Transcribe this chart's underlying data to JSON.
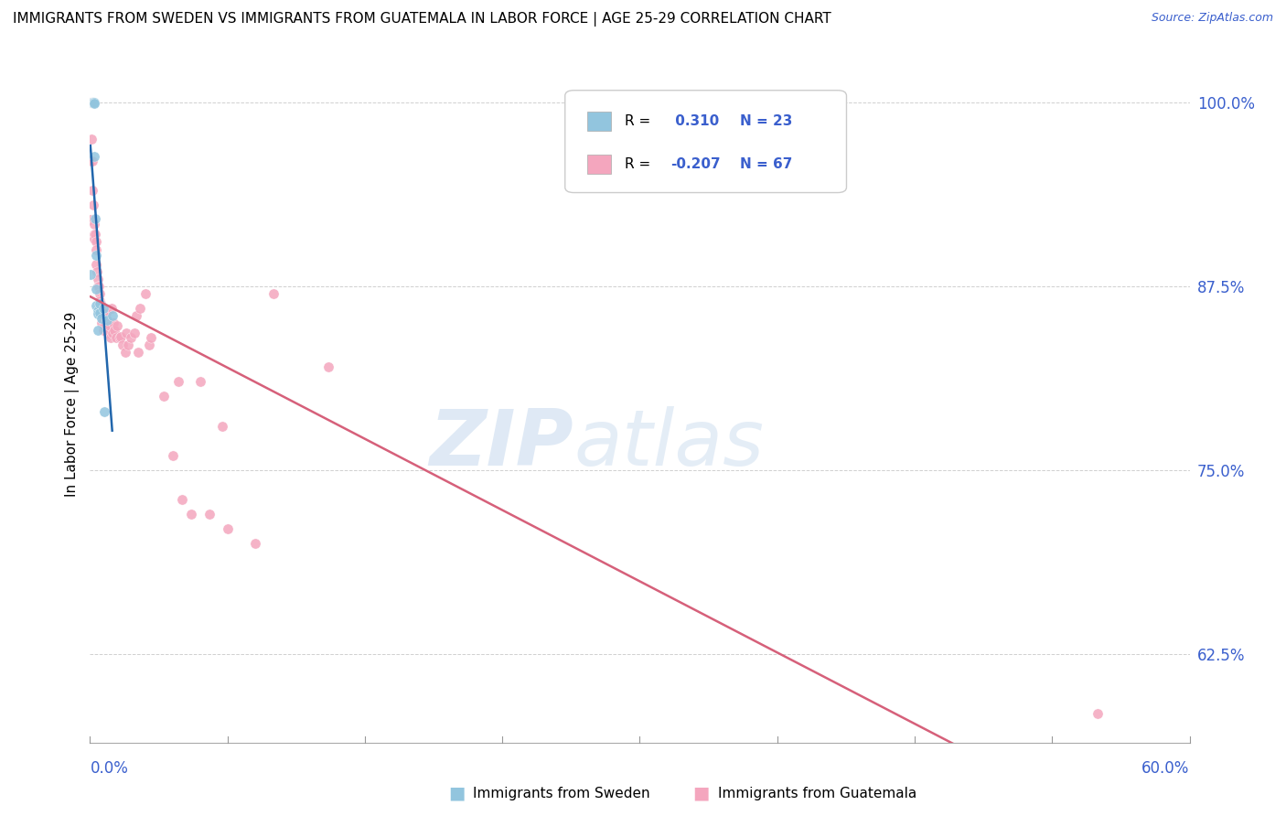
{
  "title": "IMMIGRANTS FROM SWEDEN VS IMMIGRANTS FROM GUATEMALA IN LABOR FORCE | AGE 25-29 CORRELATION CHART",
  "source": "Source: ZipAtlas.com",
  "ylabel": "In Labor Force | Age 25-29",
  "R_sweden": 0.31,
  "N_sweden": 23,
  "R_guatemala": -0.207,
  "N_guatemala": 67,
  "legend_label_sweden": "Immigrants from Sweden",
  "legend_label_guatemala": "Immigrants from Guatemala",
  "color_sweden": "#92c5de",
  "color_guatemala": "#f4a6be",
  "trendline_color_sweden": "#2166ac",
  "trendline_color_guatemala": "#d6607a",
  "xlim": [
    0.0,
    0.6
  ],
  "ylim": [
    0.565,
    1.025
  ],
  "ytick_positions": [
    0.625,
    0.75,
    0.875,
    1.0
  ],
  "ytick_labels": [
    "62.5%",
    "75.0%",
    "87.5%",
    "100.0%"
  ],
  "sweden_x": [
    0.0002,
    0.0011,
    0.0013,
    0.0014,
    0.0016,
    0.002,
    0.0021,
    0.0022,
    0.0023,
    0.003,
    0.0031,
    0.0032,
    0.0033,
    0.0041,
    0.0042,
    0.0044,
    0.0051,
    0.0053,
    0.0061,
    0.0072,
    0.008,
    0.0095,
    0.0121
  ],
  "sweden_y": [
    0.883,
    1.0,
    1.0,
    1.0,
    1.0,
    1.0,
    1.0,
    0.999,
    0.963,
    0.921,
    0.896,
    0.873,
    0.862,
    0.858,
    0.856,
    0.845,
    0.863,
    0.857,
    0.853,
    0.86,
    0.79,
    0.852,
    0.855
  ],
  "guatemala_x": [
    0.0003,
    0.0004,
    0.0005,
    0.001,
    0.0012,
    0.0014,
    0.002,
    0.0022,
    0.0023,
    0.0025,
    0.003,
    0.0031,
    0.0033,
    0.0035,
    0.004,
    0.0042,
    0.0045,
    0.005,
    0.0051,
    0.0052,
    0.0053,
    0.006,
    0.0061,
    0.0063,
    0.007,
    0.0072,
    0.0074,
    0.008,
    0.009,
    0.0092,
    0.01,
    0.0102,
    0.011,
    0.0113,
    0.012,
    0.0122,
    0.013,
    0.0133,
    0.0141,
    0.015,
    0.0161,
    0.017,
    0.018,
    0.0191,
    0.02,
    0.021,
    0.0221,
    0.024,
    0.0251,
    0.0262,
    0.027,
    0.0302,
    0.0321,
    0.0332,
    0.0401,
    0.045,
    0.048,
    0.05,
    0.055,
    0.06,
    0.0651,
    0.072,
    0.075,
    0.09,
    0.1,
    0.13,
    0.55
  ],
  "guatemala_y": [
    1.0,
    0.96,
    0.92,
    0.975,
    0.96,
    0.94,
    0.93,
    0.917,
    0.91,
    0.907,
    0.91,
    0.905,
    0.9,
    0.89,
    0.885,
    0.88,
    0.875,
    0.875,
    0.87,
    0.865,
    0.86,
    0.863,
    0.855,
    0.85,
    0.86,
    0.855,
    0.845,
    0.848,
    0.857,
    0.847,
    0.85,
    0.843,
    0.848,
    0.84,
    0.86,
    0.843,
    0.85,
    0.845,
    0.84,
    0.848,
    0.84,
    0.841,
    0.835,
    0.83,
    0.843,
    0.835,
    0.84,
    0.843,
    0.855,
    0.83,
    0.86,
    0.87,
    0.835,
    0.84,
    0.8,
    0.76,
    0.81,
    0.73,
    0.72,
    0.81,
    0.72,
    0.78,
    0.71,
    0.7,
    0.87,
    0.82,
    0.585
  ],
  "blue_label_color": "#3a5fcd",
  "title_fontsize": 11,
  "axis_label_fontsize": 11,
  "tick_label_fontsize": 12,
  "source_fontsize": 9,
  "legend_fontsize": 11
}
